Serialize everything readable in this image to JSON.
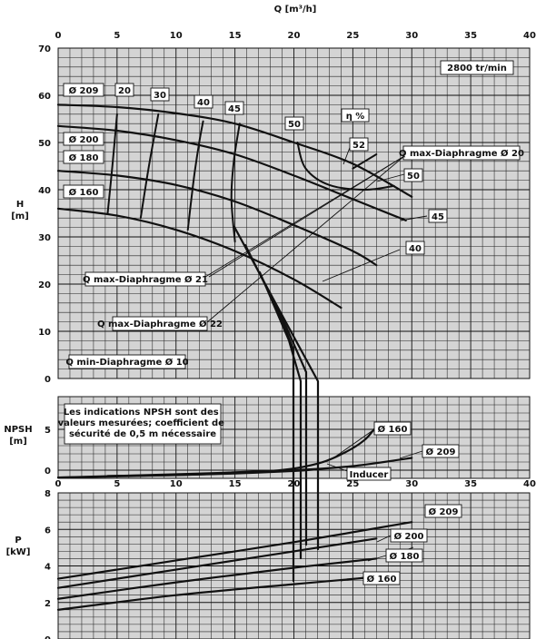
{
  "chart_data": {
    "type": "line",
    "speed_label": "2800 tr/min",
    "x_axis": {
      "label": "Q [m³/h]",
      "range": [
        0,
        40
      ],
      "ticks": [
        "0",
        "5",
        "10",
        "15",
        "20",
        "25",
        "30",
        "35",
        "40"
      ]
    },
    "head": {
      "ylabel": "H",
      "yunit": "[m]",
      "ylim": [
        0,
        70
      ],
      "yticks": [
        "0",
        "10",
        "20",
        "30",
        "40",
        "50",
        "60",
        "70"
      ],
      "series": [
        {
          "name": "Ø 209",
          "points": [
            [
              0,
              58
            ],
            [
              5,
              57.5
            ],
            [
              10,
              56.2
            ],
            [
              15,
              54
            ],
            [
              20,
              50
            ],
            [
              25,
              45.5
            ],
            [
              30,
              38.5
            ]
          ]
        },
        {
          "name": "Ø 200",
          "points": [
            [
              0,
              53.5
            ],
            [
              5,
              52.5
            ],
            [
              10,
              50.5
            ],
            [
              15,
              47.5
            ],
            [
              20,
              43
            ],
            [
              25,
              38
            ],
            [
              29.5,
              33.5
            ]
          ]
        },
        {
          "name": "Ø 180",
          "points": [
            [
              0,
              44
            ],
            [
              5,
              43
            ],
            [
              10,
              41
            ],
            [
              15,
              37.5
            ],
            [
              20,
              32.5
            ],
            [
              25,
              27
            ],
            [
              27,
              24
            ]
          ]
        },
        {
          "name": "Ø 160",
          "points": [
            [
              0,
              36
            ],
            [
              5,
              34.5
            ],
            [
              10,
              31.5
            ],
            [
              15,
              27
            ],
            [
              20,
              21
            ],
            [
              24,
              15
            ]
          ]
        }
      ],
      "efficiency_label": "η %",
      "efficiency": [
        {
          "name": "20",
          "points": [
            [
              4.2,
              35
            ],
            [
              4.6,
              45
            ],
            [
              5,
              56
            ]
          ]
        },
        {
          "name": "30",
          "points": [
            [
              7,
              34
            ],
            [
              7.7,
              45
            ],
            [
              8.5,
              56
            ]
          ]
        },
        {
          "name": "40",
          "points": [
            [
              11,
              31.5
            ],
            [
              11.3,
              38
            ],
            [
              11.6,
              44
            ],
            [
              12,
              50.5
            ],
            [
              12.3,
              54.5
            ]
          ]
        },
        {
          "name": "45",
          "points": [
            [
              15,
              29
            ],
            [
              14.7,
              38
            ],
            [
              14.9,
              46
            ],
            [
              15.4,
              54
            ]
          ]
        },
        {
          "name": "50",
          "points": [
            [
              20.3,
              50
            ],
            [
              21,
              44.5
            ],
            [
              23,
              41
            ],
            [
              26,
              40
            ],
            [
              28.5,
              40.8
            ]
          ]
        },
        {
          "name": "52",
          "points": [
            [
              25,
              44.5
            ],
            [
              27,
              47.5
            ]
          ]
        }
      ],
      "annotations": [
        "Q max-Diaphragme Ø 20",
        "Q max-Diaphragme Ø 21",
        "Q max-Diaphragme Ø 22",
        "Q min-Diaphragme Ø 10"
      ],
      "efficiency_right_labels": [
        "50",
        "45",
        "40"
      ]
    },
    "npsh": {
      "ylabel": "NPSH",
      "yunit": "[m]",
      "ylim": [
        -1,
        9
      ],
      "yticks": [
        "0",
        "5"
      ],
      "note": "Les indications NPSH sont des valeurs mesurées; coefficient de sécurité de 0,5 m nécessaire",
      "series": [
        {
          "name": "Ø 160",
          "points": [
            [
              0,
              -0.9
            ],
            [
              10,
              -0.6
            ],
            [
              18,
              -0.1
            ],
            [
              22,
              0.8
            ],
            [
              24.5,
              2.3
            ],
            [
              26,
              3.7
            ],
            [
              26.8,
              5
            ]
          ]
        },
        {
          "name": "Ø 209",
          "points": [
            [
              0,
              -0.9
            ],
            [
              10,
              -0.5
            ],
            [
              20,
              0
            ],
            [
              25,
              0.5
            ],
            [
              30,
              1.5
            ]
          ]
        },
        {
          "name": "Inducer",
          "points": [
            [
              4.2,
              -0.7
            ],
            [
              10,
              -0.6
            ],
            [
              15,
              -0.4
            ],
            [
              20,
              -0.1
            ],
            [
              22,
              0.1
            ]
          ]
        }
      ]
    },
    "power": {
      "ylabel": "P",
      "yunit": "[kW]",
      "ylim": [
        0,
        8
      ],
      "yticks": [
        "0",
        "2",
        "4",
        "6",
        "8"
      ],
      "series": [
        {
          "name": "Ø 209",
          "points": [
            [
              0,
              3.3
            ],
            [
              10,
              4.3
            ],
            [
              20,
              5.3
            ],
            [
              30,
              6.4
            ]
          ]
        },
        {
          "name": "Ø 200",
          "points": [
            [
              0,
              2.8
            ],
            [
              10,
              3.8
            ],
            [
              20,
              4.8
            ],
            [
              27,
              5.5
            ]
          ]
        },
        {
          "name": "Ø 180",
          "points": [
            [
              0,
              2.2
            ],
            [
              10,
              3.1
            ],
            [
              20,
              3.9
            ],
            [
              27,
              4.4
            ]
          ]
        },
        {
          "name": "Ø 160",
          "points": [
            [
              0,
              1.6
            ],
            [
              10,
              2.4
            ],
            [
              20,
              3
            ],
            [
              27,
              3.4
            ]
          ]
        }
      ]
    }
  }
}
